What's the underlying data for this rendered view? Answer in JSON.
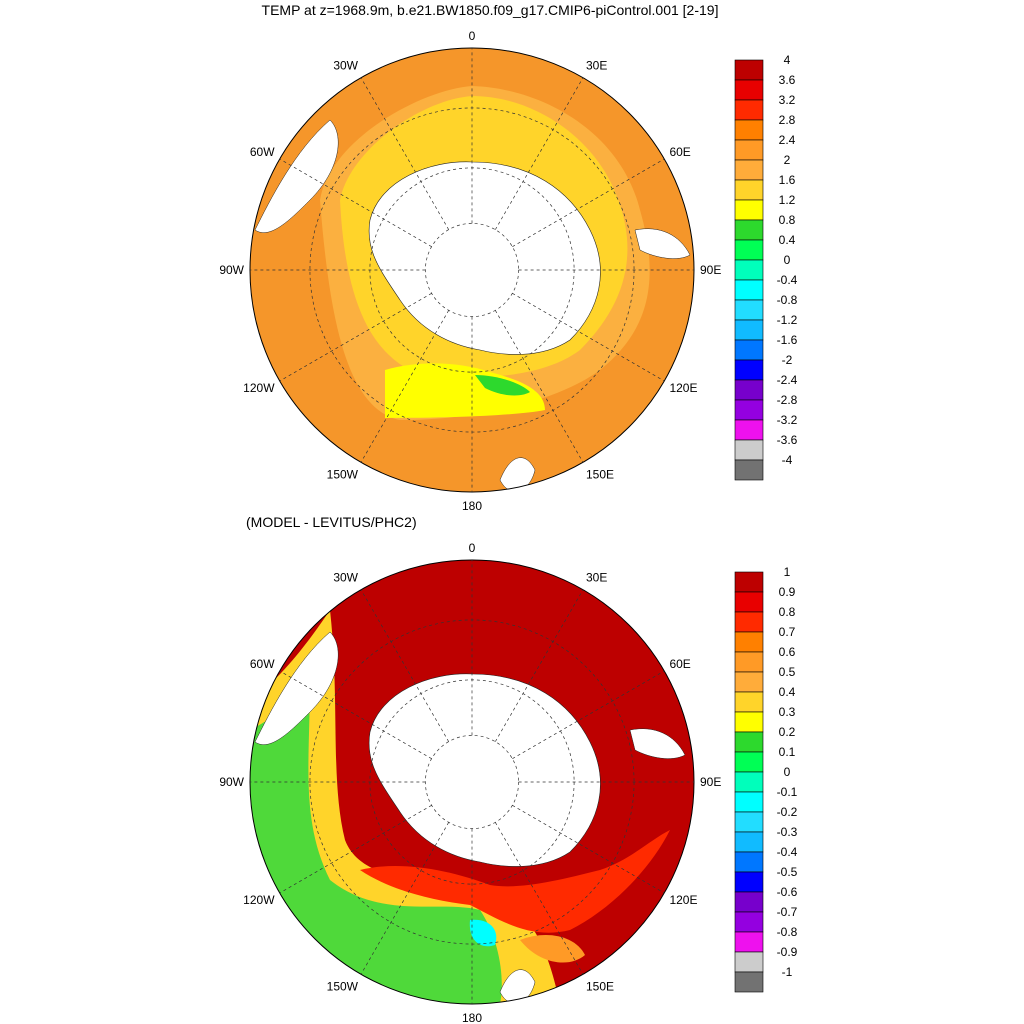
{
  "title": "TEMP at z=1968.9m, b.e21.BW1850.f09_g17.CMIP6-piControl.001 [2-19]",
  "bottom_title": "(MODEL - LEVITUS/PHC2)",
  "longitude_labels": [
    "0",
    "30E",
    "60E",
    "90E",
    "120E",
    "150E",
    "180",
    "150W",
    "120W",
    "90W",
    "60W",
    "30W"
  ],
  "top_colorbar": {
    "labels": [
      "4",
      "3.6",
      "3.2",
      "2.8",
      "2.4",
      "2",
      "1.6",
      "1.2",
      "0.8",
      "0.4",
      "0",
      "-0.4",
      "-0.8",
      "-1.2",
      "-1.6",
      "-2",
      "-2.4",
      "-2.8",
      "-3.2",
      "-3.6",
      "-4"
    ],
    "colors": [
      "#bd0000",
      "#e80000",
      "#ff2a00",
      "#ff8000",
      "#ff9a26",
      "#ffac3a",
      "#ffd42a",
      "#ffff00",
      "#2dd92d",
      "#00ff55",
      "#00ffbb",
      "#00ffff",
      "#22ddff",
      "#11bbff",
      "#0077ff",
      "#0000ff",
      "#7700cc",
      "#9400e0",
      "#ee11ee",
      "#cccccc",
      "#727272"
    ]
  },
  "bottom_colorbar": {
    "labels": [
      "1",
      "0.9",
      "0.8",
      "0.7",
      "0.6",
      "0.5",
      "0.4",
      "0.3",
      "0.2",
      "0.1",
      "0",
      "-0.1",
      "-0.2",
      "-0.3",
      "-0.4",
      "-0.5",
      "-0.6",
      "-0.7",
      "-0.8",
      "-0.9",
      "-1"
    ],
    "colors": [
      "#bd0000",
      "#e80000",
      "#ff2a00",
      "#ff8000",
      "#ff9a26",
      "#ffac3a",
      "#ffd42a",
      "#ffff00",
      "#2dd92d",
      "#00ff55",
      "#00ffbb",
      "#00ffff",
      "#22ddff",
      "#11bbff",
      "#0077ff",
      "#0000ff",
      "#7700cc",
      "#9400e0",
      "#ee11ee",
      "#cccccc",
      "#727272"
    ]
  },
  "colors": {
    "land": "#ffffff",
    "top_outer": "#f5962a",
    "top_mid": "#fbb040",
    "top_inner": "#ffd42a",
    "top_ross": "#ffff00",
    "bottom_high": "#bd0000",
    "bottom_mid": "#ff2a00",
    "bottom_low": "#4fd93a",
    "bottom_yellow": "#ffd42a"
  }
}
